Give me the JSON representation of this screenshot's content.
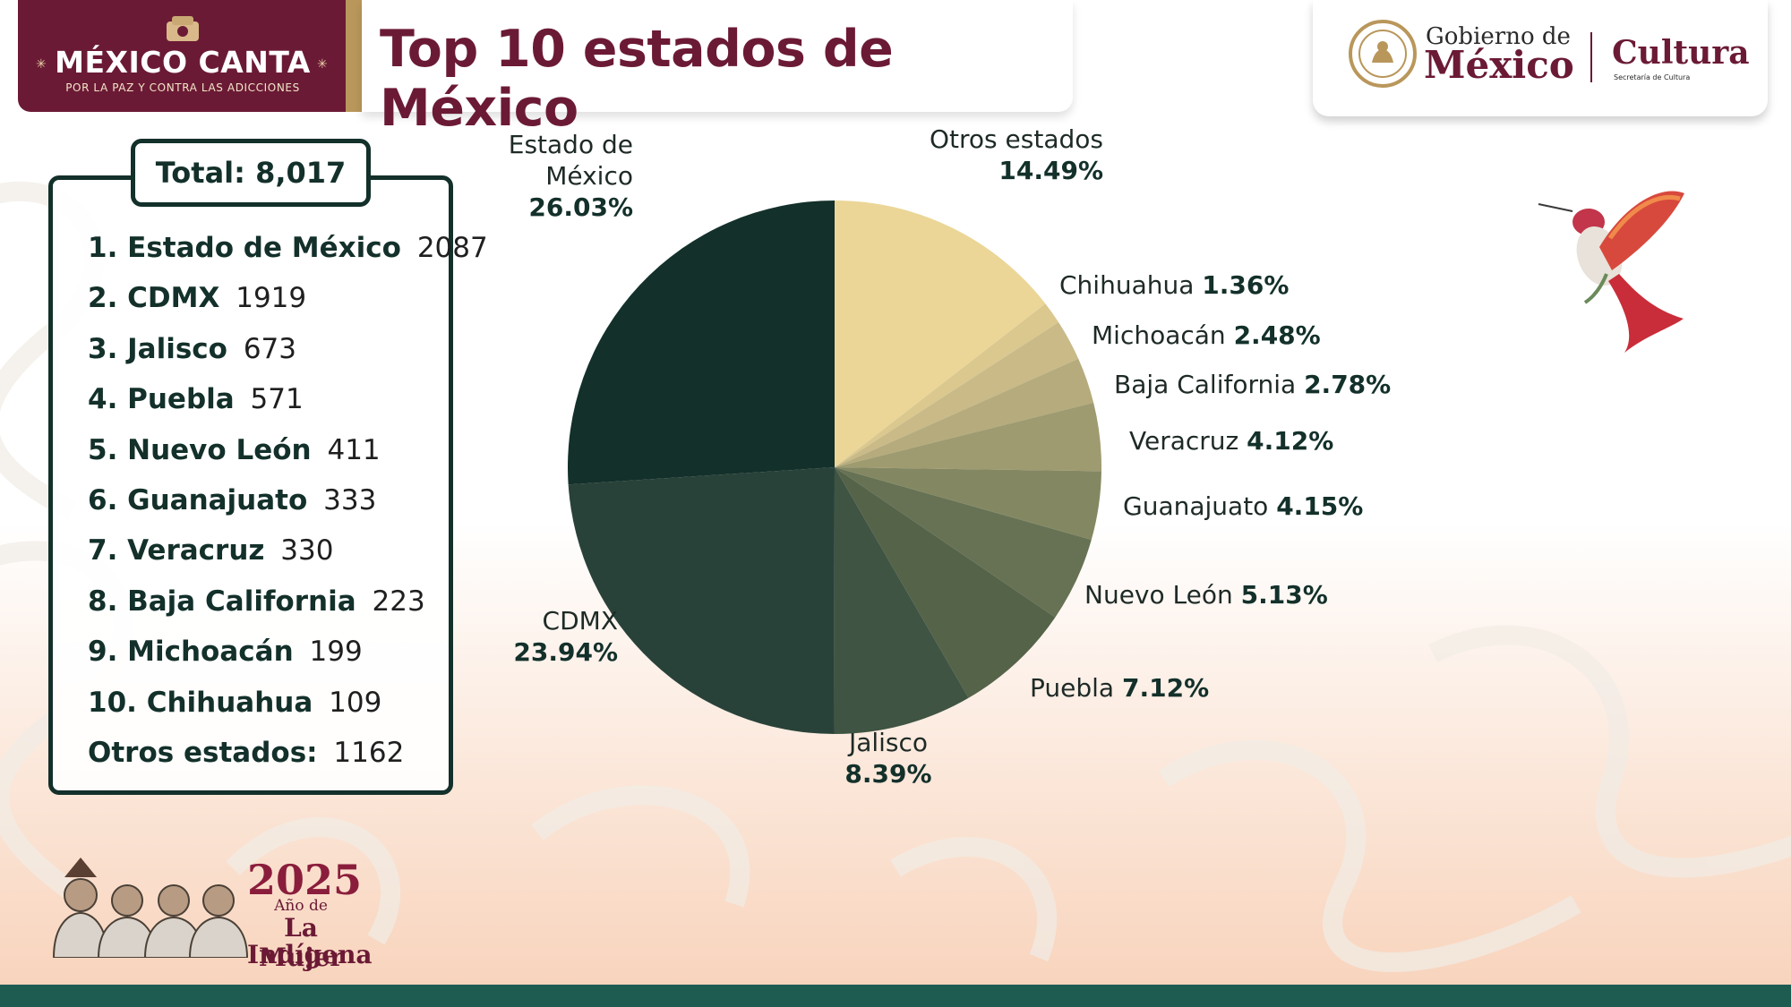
{
  "header": {
    "brand_name": "MÉXICO CANTA",
    "brand_tagline": "POR LA PAZ Y CONTRA LAS ADICCIONES",
    "title": "Top 10 estados de México",
    "gov_line1": "Gobierno de",
    "gov_line2": "México",
    "culture": "Cultura",
    "culture_sub": "Secretaría de Cultura"
  },
  "legend_panel": {
    "total": "Total: 8,017",
    "rows": [
      {
        "label": "1. Estado de México",
        "value": "2087"
      },
      {
        "label": "2. CDMX",
        "value": "1919"
      },
      {
        "label": "3. Jalisco",
        "value": "673"
      },
      {
        "label": "4. Puebla",
        "value": "571"
      },
      {
        "label": "5. Nuevo León",
        "value": "411"
      },
      {
        "label": "6. Guanajuato",
        "value": "333"
      },
      {
        "label": "7. Veracruz",
        "value": "330"
      },
      {
        "label": "8. Baja California",
        "value": "223"
      },
      {
        "label": "9. Michoacán",
        "value": "199"
      },
      {
        "label": "10. Chihuahua",
        "value": "109"
      },
      {
        "label": "Otros estados:",
        "value": "1162"
      }
    ]
  },
  "chart_data": {
    "type": "pie",
    "title": "Top 10 estados de México",
    "start": "top, clockwise",
    "slices": [
      {
        "label": "Otros estados",
        "pct": "14.49%",
        "value": 14.49,
        "color": "#ebd697"
      },
      {
        "label": "Chihuahua",
        "pct": "1.36%",
        "value": 1.36,
        "color": "#dac88f"
      },
      {
        "label": "Michoacán",
        "pct": "2.48%",
        "value": 2.48,
        "color": "#c9ba88"
      },
      {
        "label": "Baja California",
        "pct": "2.78%",
        "value": 2.78,
        "color": "#b6ab7d"
      },
      {
        "label": "Veracruz",
        "pct": "4.12%",
        "value": 4.12,
        "color": "#9f9b70"
      },
      {
        "label": "Guanajuato",
        "pct": "4.15%",
        "value": 4.15,
        "color": "#848862"
      },
      {
        "label": "Nuevo León",
        "pct": "5.13%",
        "value": 5.13,
        "color": "#677254"
      },
      {
        "label": "Puebla",
        "pct": "7.12%",
        "value": 7.12,
        "color": "#556349"
      },
      {
        "label": "Jalisco",
        "pct": "8.39%",
        "value": 8.39,
        "color": "#3f5443"
      },
      {
        "label": "CDMX",
        "pct": "23.94%",
        "value": 23.94,
        "color": "#294239"
      },
      {
        "label": "Estado de\nMéxico",
        "pct": "26.03%",
        "value": 26.03,
        "color": "#13302a"
      }
    ]
  },
  "footer": {
    "year": "2025",
    "line1": "Año de",
    "line2": "La Mujer",
    "line3": "Indígena"
  },
  "colors": {
    "brand_maroon": "#6b1a35",
    "gold": "#b9975b",
    "dark_green": "#13302a",
    "footer_band": "#1e5c52"
  }
}
